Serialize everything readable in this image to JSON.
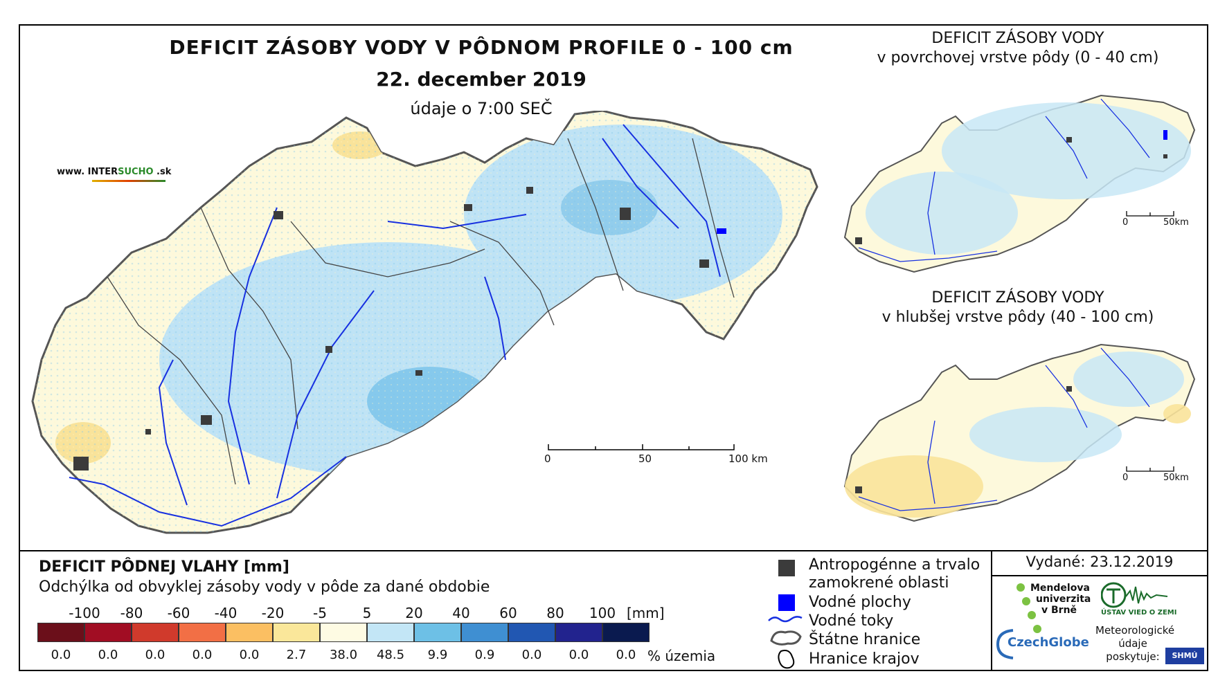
{
  "main": {
    "title": "DEFICIT ZÁSOBY VODY V PÔDNOM PROFILE 0 - 100 cm",
    "date": "22. december 2019",
    "time": "údaje o 7:00 SEČ",
    "website_prefix": "www. INTER",
    "website_brand": "SUCHO",
    "website_suffix": " .sk",
    "scale": {
      "ticks": [
        "0",
        "50",
        "100 km"
      ]
    }
  },
  "inset_top": {
    "title_line1": "DEFICIT ZÁSOBY VODY",
    "title_line2": "v povrchovej vrstve pôdy (0 - 40 cm)",
    "scale": {
      "ticks": [
        "0",
        "50km"
      ]
    }
  },
  "inset_bottom": {
    "title_line1": "DEFICIT ZÁSOBY VODY",
    "title_line2": "v hlubšej vrstve pôdy (40 - 100 cm)",
    "scale": {
      "ticks": [
        "0",
        "50km"
      ]
    }
  },
  "legend": {
    "title": "DEFICIT PÔDNEJ VLAHY [mm]",
    "subtitle": "Odchýlka od obvyklej zásoby vody v pôde za dané obdobie",
    "thresholds": [
      "-100",
      "-80",
      "-60",
      "-40",
      "-20",
      "-5",
      "5",
      "20",
      "40",
      "60",
      "80",
      "100"
    ],
    "unit": "[mm]",
    "classes": [
      {
        "color": "#6b0f1a",
        "percent": "0.0"
      },
      {
        "color": "#a10d23",
        "percent": "0.0"
      },
      {
        "color": "#d03a2c",
        "percent": "0.0"
      },
      {
        "color": "#f26f45",
        "percent": "0.0"
      },
      {
        "color": "#fbbf62",
        "percent": "0.0"
      },
      {
        "color": "#fae79a",
        "percent": "2.7"
      },
      {
        "color": "#fefbe3",
        "percent": "38.0"
      },
      {
        "color": "#c3e6f6",
        "percent": "48.5"
      },
      {
        "color": "#6dc0e6",
        "percent": "9.9"
      },
      {
        "color": "#3f8fd2",
        "percent": "0.9"
      },
      {
        "color": "#2157b2",
        "percent": "0.0"
      },
      {
        "color": "#22238e",
        "percent": "0.0"
      },
      {
        "color": "#0a1a4f",
        "percent": "0.0"
      }
    ],
    "percent_unit": "% územia"
  },
  "map_key": {
    "urban_line1": "Antropogénne a trvalo",
    "urban_line2": "zamokrené oblasti",
    "water_bodies": "Vodné plochy",
    "rivers": "Vodné toky",
    "state_border": "Štátne hranice",
    "region_border": "Hranice krajov"
  },
  "credits": {
    "issued": "Vydané: 23.12.2019",
    "mendel_line1": "Mendelova",
    "mendel_line2": "univerzita",
    "mendel_line3": "v Brně",
    "ustav": "ÚSTAV VIED O ZEMI",
    "czechglobe": "CzechGlobe",
    "meteo_line1": "Meteorologické",
    "meteo_line2": "údaje",
    "meteo_line3": "poskytuje:",
    "shmu": "SHMÚ"
  }
}
